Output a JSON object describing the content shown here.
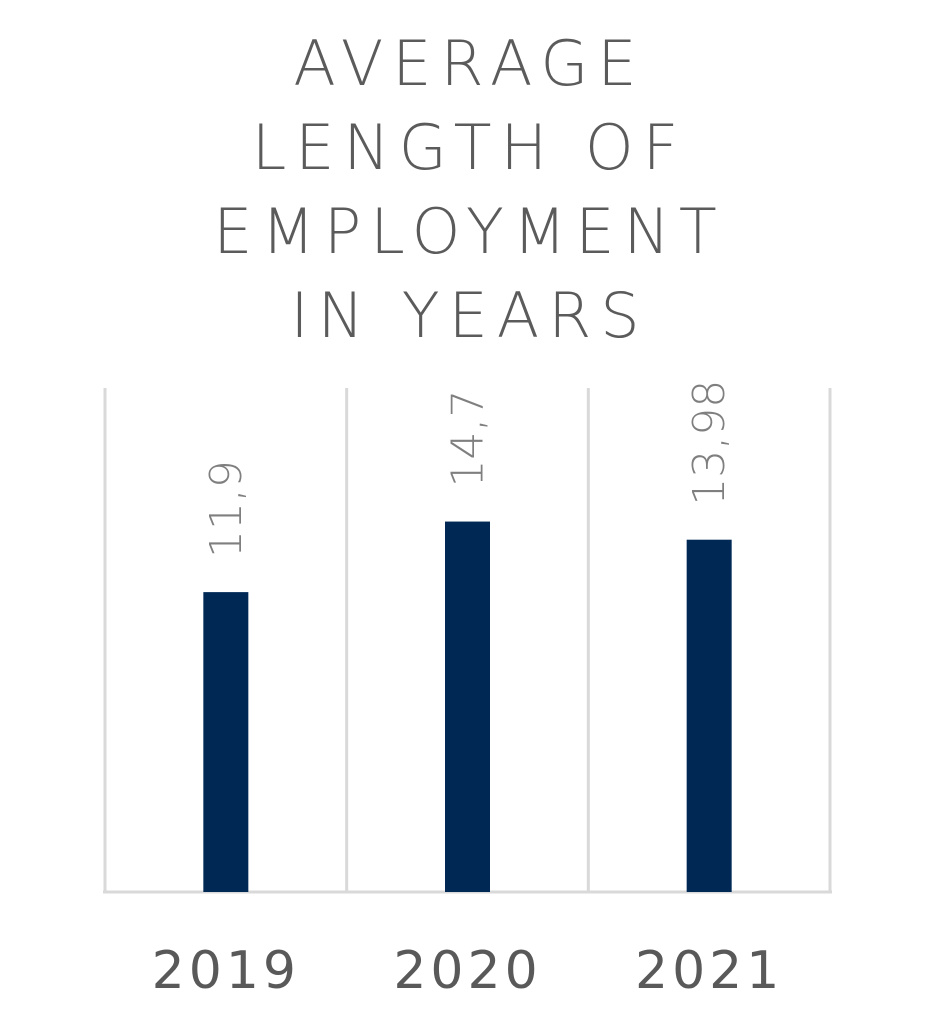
{
  "chart_data": {
    "type": "bar",
    "title_lines": [
      "AVERAGE",
      "LENGTH OF",
      "EMPLOYMENT",
      "IN YEARS"
    ],
    "title": "AVERAGE LENGTH OF EMPLOYMENT IN YEARS",
    "categories": [
      "2019",
      "2020",
      "2021"
    ],
    "values": [
      11.9,
      14.7,
      13.98
    ],
    "data_labels": [
      "11,9",
      "14,7",
      "13,98"
    ],
    "ylim": [
      0,
      20
    ],
    "grid": "vertical separators",
    "legend": "none",
    "bar_color": "#002855"
  }
}
